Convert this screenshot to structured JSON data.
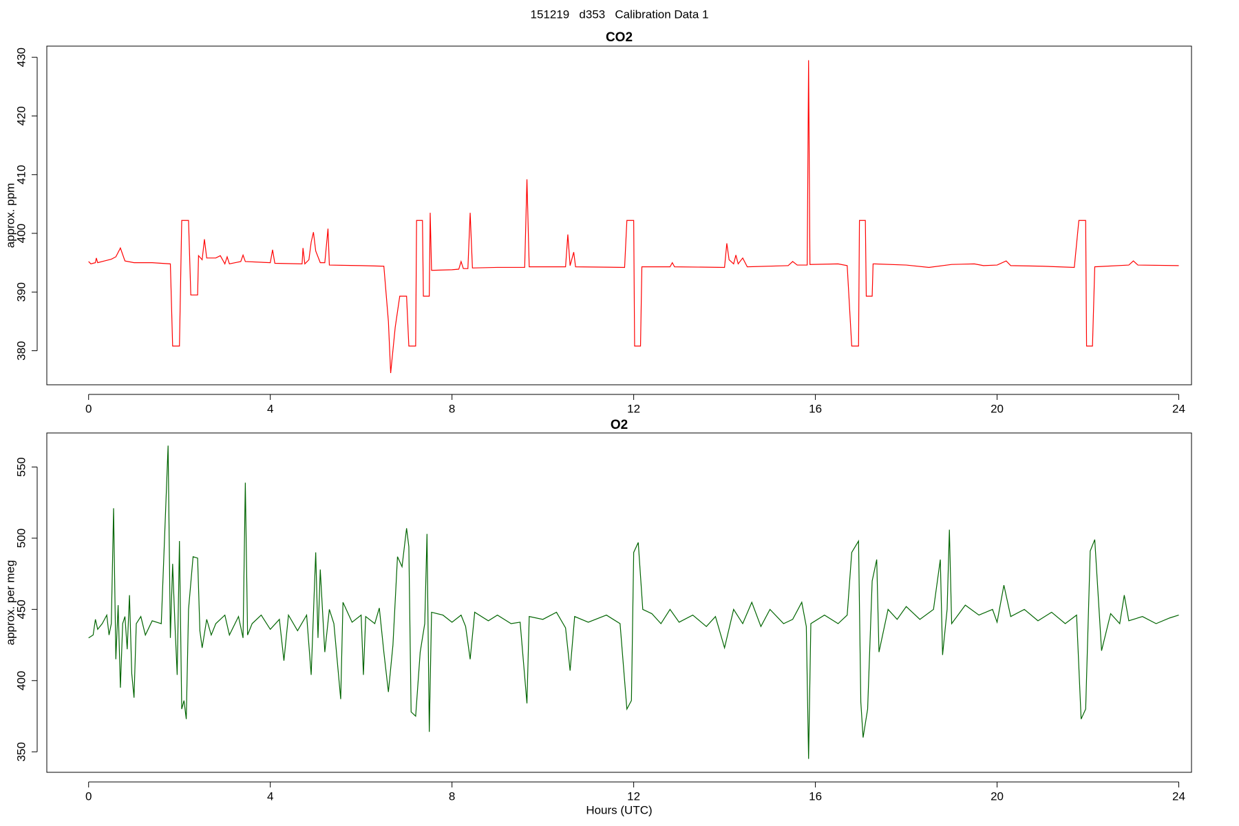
{
  "title": "151219   d353   Calibration Data 1",
  "chart_data": [
    {
      "type": "line",
      "title": "CO2",
      "ylabel": "approx. ppm",
      "x": [
        0,
        0.05,
        0.15,
        0.17,
        0.2,
        0.35,
        0.5,
        0.6,
        0.7,
        0.8,
        1.0,
        1.4,
        1.8,
        1.85,
        2.0,
        2.05,
        2.2,
        2.25,
        2.4,
        2.42,
        2.5,
        2.55,
        2.6,
        2.8,
        2.9,
        3.0,
        3.05,
        3.1,
        3.35,
        3.4,
        3.45,
        4.0,
        4.05,
        4.1,
        4.7,
        4.72,
        4.76,
        4.85,
        4.9,
        4.95,
        5.0,
        5.1,
        5.2,
        5.27,
        5.3,
        6.0,
        6.5,
        6.6,
        6.65,
        6.75,
        6.85,
        7.0,
        7.05,
        7.2,
        7.22,
        7.35,
        7.37,
        7.5,
        7.52,
        7.55,
        8.0,
        8.15,
        8.2,
        8.25,
        8.35,
        8.4,
        8.45,
        9.0,
        9.6,
        9.65,
        9.7,
        10.5,
        10.55,
        10.6,
        10.68,
        10.72,
        11.8,
        11.85,
        12.0,
        12.02,
        12.15,
        12.18,
        12.8,
        12.85,
        12.9,
        14.0,
        14.05,
        14.1,
        14.2,
        14.25,
        14.3,
        14.4,
        14.5,
        15.4,
        15.5,
        15.6,
        15.82,
        15.85,
        15.88,
        16.5,
        16.7,
        16.8,
        16.95,
        16.97,
        17.1,
        17.12,
        17.25,
        17.27,
        18.0,
        18.5,
        19.0,
        19.5,
        19.7,
        20.0,
        20.2,
        20.3,
        21.0,
        21.7,
        21.8,
        21.95,
        21.97,
        22.1,
        22.15,
        22.9,
        23.0,
        23.1,
        24.0
      ],
      "series": [
        {
          "color": "#ff0000",
          "values": [
            395.2,
            394.8,
            395.0,
            395.8,
            395.0,
            395.3,
            395.6,
            396.0,
            397.5,
            395.3,
            395.0,
            395.0,
            394.8,
            380.8,
            380.8,
            402.2,
            402.2,
            389.5,
            389.5,
            396.2,
            395.5,
            399.0,
            395.8,
            395.8,
            396.2,
            394.8,
            396.0,
            394.8,
            395.2,
            396.3,
            395.2,
            395.0,
            397.2,
            394.9,
            394.8,
            397.5,
            394.8,
            395.5,
            398.5,
            400.2,
            397.0,
            395.0,
            395.0,
            400.8,
            394.6,
            394.5,
            394.4,
            385.0,
            376.2,
            384.0,
            389.3,
            389.3,
            380.8,
            380.8,
            402.2,
            402.2,
            389.3,
            389.3,
            403.5,
            393.7,
            393.8,
            393.9,
            395.2,
            394.0,
            394.0,
            403.5,
            394.1,
            394.2,
            394.2,
            409.2,
            394.3,
            394.3,
            399.8,
            394.5,
            396.8,
            394.3,
            394.2,
            402.2,
            402.2,
            380.8,
            380.8,
            394.3,
            394.3,
            395.0,
            394.3,
            394.2,
            398.3,
            395.5,
            394.8,
            396.3,
            394.8,
            395.8,
            394.3,
            394.5,
            395.2,
            394.6,
            394.6,
            429.5,
            394.7,
            394.8,
            394.5,
            380.8,
            380.8,
            402.2,
            402.2,
            389.3,
            389.3,
            394.8,
            394.6,
            394.2,
            394.7,
            394.8,
            394.5,
            394.6,
            395.3,
            394.5,
            394.4,
            394.2,
            402.2,
            402.2,
            380.8,
            380.8,
            394.3,
            394.6,
            395.3,
            394.6,
            394.5
          ]
        }
      ],
      "xlim": [
        -0.92,
        24.28
      ],
      "ylim": [
        374.2,
        431.9
      ],
      "xticks": [
        0,
        4,
        8,
        12,
        16,
        20,
        24
      ],
      "yticks": [
        380,
        390,
        400,
        410,
        420,
        430
      ]
    },
    {
      "type": "line",
      "title": "O2",
      "ylabel": "approx. per meg",
      "xlabel": "Hours (UTC)",
      "x": [
        0,
        0.1,
        0.15,
        0.2,
        0.3,
        0.4,
        0.45,
        0.5,
        0.55,
        0.6,
        0.65,
        0.7,
        0.75,
        0.8,
        0.85,
        0.9,
        0.95,
        1.0,
        1.05,
        1.15,
        1.25,
        1.4,
        1.6,
        1.75,
        1.8,
        1.85,
        1.9,
        1.95,
        2.0,
        2.05,
        2.1,
        2.15,
        2.2,
        2.3,
        2.4,
        2.45,
        2.5,
        2.6,
        2.7,
        2.8,
        3.0,
        3.1,
        3.3,
        3.4,
        3.45,
        3.5,
        3.6,
        3.8,
        4.0,
        4.2,
        4.3,
        4.4,
        4.6,
        4.8,
        4.9,
        5.0,
        5.05,
        5.1,
        5.2,
        5.3,
        5.4,
        5.55,
        5.6,
        5.8,
        6.0,
        6.05,
        6.1,
        6.3,
        6.4,
        6.5,
        6.6,
        6.7,
        6.8,
        6.9,
        7.0,
        7.05,
        7.1,
        7.2,
        7.3,
        7.4,
        7.45,
        7.5,
        7.55,
        7.8,
        8.0,
        8.2,
        8.3,
        8.4,
        8.5,
        8.8,
        9.0,
        9.3,
        9.5,
        9.65,
        9.7,
        10.0,
        10.3,
        10.5,
        10.6,
        10.7,
        11.0,
        11.4,
        11.7,
        11.85,
        11.95,
        12.0,
        12.1,
        12.2,
        12.4,
        12.6,
        12.8,
        13.0,
        13.3,
        13.6,
        13.8,
        14.0,
        14.2,
        14.4,
        14.6,
        14.8,
        15.0,
        15.3,
        15.5,
        15.7,
        15.8,
        15.85,
        15.9,
        16.2,
        16.5,
        16.7,
        16.8,
        16.95,
        17.0,
        17.05,
        17.15,
        17.25,
        17.35,
        17.4,
        17.6,
        17.8,
        18.0,
        18.3,
        18.6,
        18.75,
        18.8,
        18.9,
        18.95,
        19.0,
        19.3,
        19.6,
        19.9,
        20.0,
        20.15,
        20.3,
        20.6,
        20.9,
        21.2,
        21.5,
        21.75,
        21.85,
        21.95,
        22.05,
        22.15,
        22.3,
        22.5,
        22.7,
        22.8,
        22.9,
        23.2,
        23.5,
        23.8,
        24.0
      ],
      "series": [
        {
          "color": "#006400",
          "values": [
            430,
            432,
            443,
            436,
            440,
            446,
            432,
            440,
            521,
            415,
            453,
            395,
            440,
            445,
            422,
            460,
            405,
            388,
            440,
            445,
            432,
            442,
            440,
            565,
            430,
            482,
            440,
            404,
            498,
            380,
            386,
            373,
            450,
            487,
            486,
            435,
            423,
            443,
            432,
            440,
            446,
            432,
            445,
            430,
            539,
            432,
            440,
            446,
            436,
            443,
            414,
            446,
            435,
            446,
            404,
            490,
            430,
            478,
            420,
            450,
            440,
            387,
            455,
            441,
            446,
            404,
            445,
            440,
            451,
            420,
            392,
            425,
            487,
            480,
            507,
            494,
            378,
            375,
            420,
            440,
            503,
            364,
            448,
            446,
            441,
            446,
            438,
            415,
            448,
            442,
            446,
            440,
            441,
            384,
            445,
            443,
            448,
            437,
            407,
            445,
            441,
            446,
            440,
            380,
            386,
            490,
            497,
            450,
            447,
            440,
            450,
            441,
            446,
            438,
            445,
            423,
            450,
            440,
            455,
            438,
            450,
            440,
            443,
            455,
            438,
            345,
            440,
            446,
            440,
            446,
            490,
            498,
            385,
            360,
            380,
            470,
            485,
            420,
            450,
            443,
            452,
            443,
            450,
            485,
            418,
            450,
            506,
            440,
            453,
            446,
            450,
            441,
            467,
            445,
            450,
            442,
            448,
            440,
            446,
            373,
            380,
            491,
            499,
            421,
            447,
            440,
            460,
            442,
            445,
            440,
            444,
            446
          ]
        }
      ],
      "xlim": [
        -0.92,
        24.28
      ],
      "ylim": [
        335.6,
        573.9
      ],
      "xticks": [
        0,
        4,
        8,
        12,
        16,
        20,
        24
      ],
      "yticks": [
        350,
        400,
        450,
        500,
        550
      ]
    }
  ]
}
